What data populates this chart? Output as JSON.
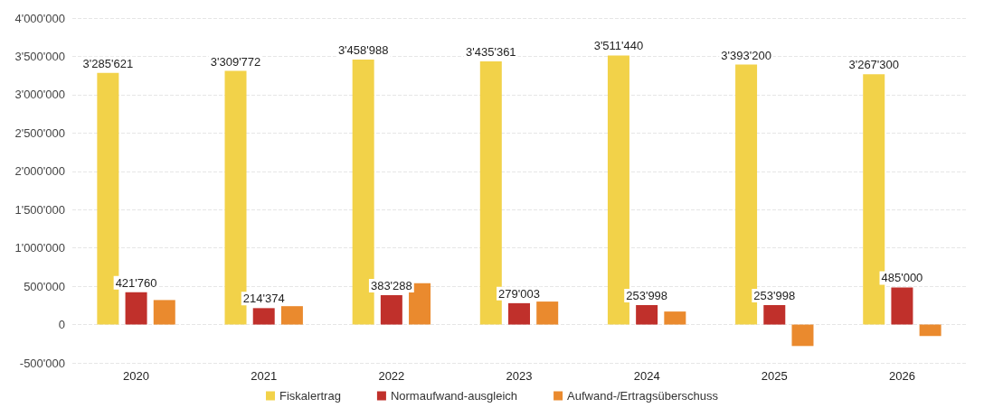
{
  "chart_data": {
    "type": "bar",
    "categories": [
      "2020",
      "2021",
      "2022",
      "2023",
      "2024",
      "2025",
      "2026"
    ],
    "series": [
      {
        "name": "Fiskalertrag",
        "color": "#f2d249",
        "values": [
          3285621,
          3309772,
          3458988,
          3435361,
          3511440,
          3393200,
          3267300
        ],
        "value_labels": [
          "3'285'621",
          "3'309'772",
          "3'458'988",
          "3'435'361",
          "3'511'440",
          "3'393'200",
          "3'267'300"
        ]
      },
      {
        "name": "Normaufwand-ausgleich",
        "color": "#c0302b",
        "values": [
          421760,
          214374,
          383288,
          279003,
          253998,
          253998,
          485000
        ],
        "value_labels": [
          "421'760",
          "214'374",
          "383'288",
          "279'003",
          "253'998",
          "253'998",
          "485'000"
        ]
      },
      {
        "name": "Aufwand-/Ertragsüberschuss",
        "color": "#ea8a2e",
        "values": [
          320000,
          240000,
          540000,
          300000,
          170000,
          -280000,
          -150000
        ]
      }
    ],
    "ylim": [
      -500000,
      4000000
    ],
    "yticks": [
      {
        "value": -500000,
        "label": "-500'000"
      },
      0,
      {
        "value": 500000,
        "label": "500'000"
      },
      {
        "value": 1000000,
        "label": "1'000'000"
      },
      {
        "value": 1500000,
        "label": "1'500'000"
      },
      {
        "value": 2000000,
        "label": "2'000'000"
      },
      {
        "value": 2500000,
        "label": "2'500'000"
      },
      {
        "value": 3000000,
        "label": "3'000'000"
      },
      {
        "value": 3500000,
        "label": "3'500'000"
      },
      {
        "value": 4000000,
        "label": "4'000'000"
      }
    ],
    "grid": "y",
    "legend": "bottom"
  }
}
